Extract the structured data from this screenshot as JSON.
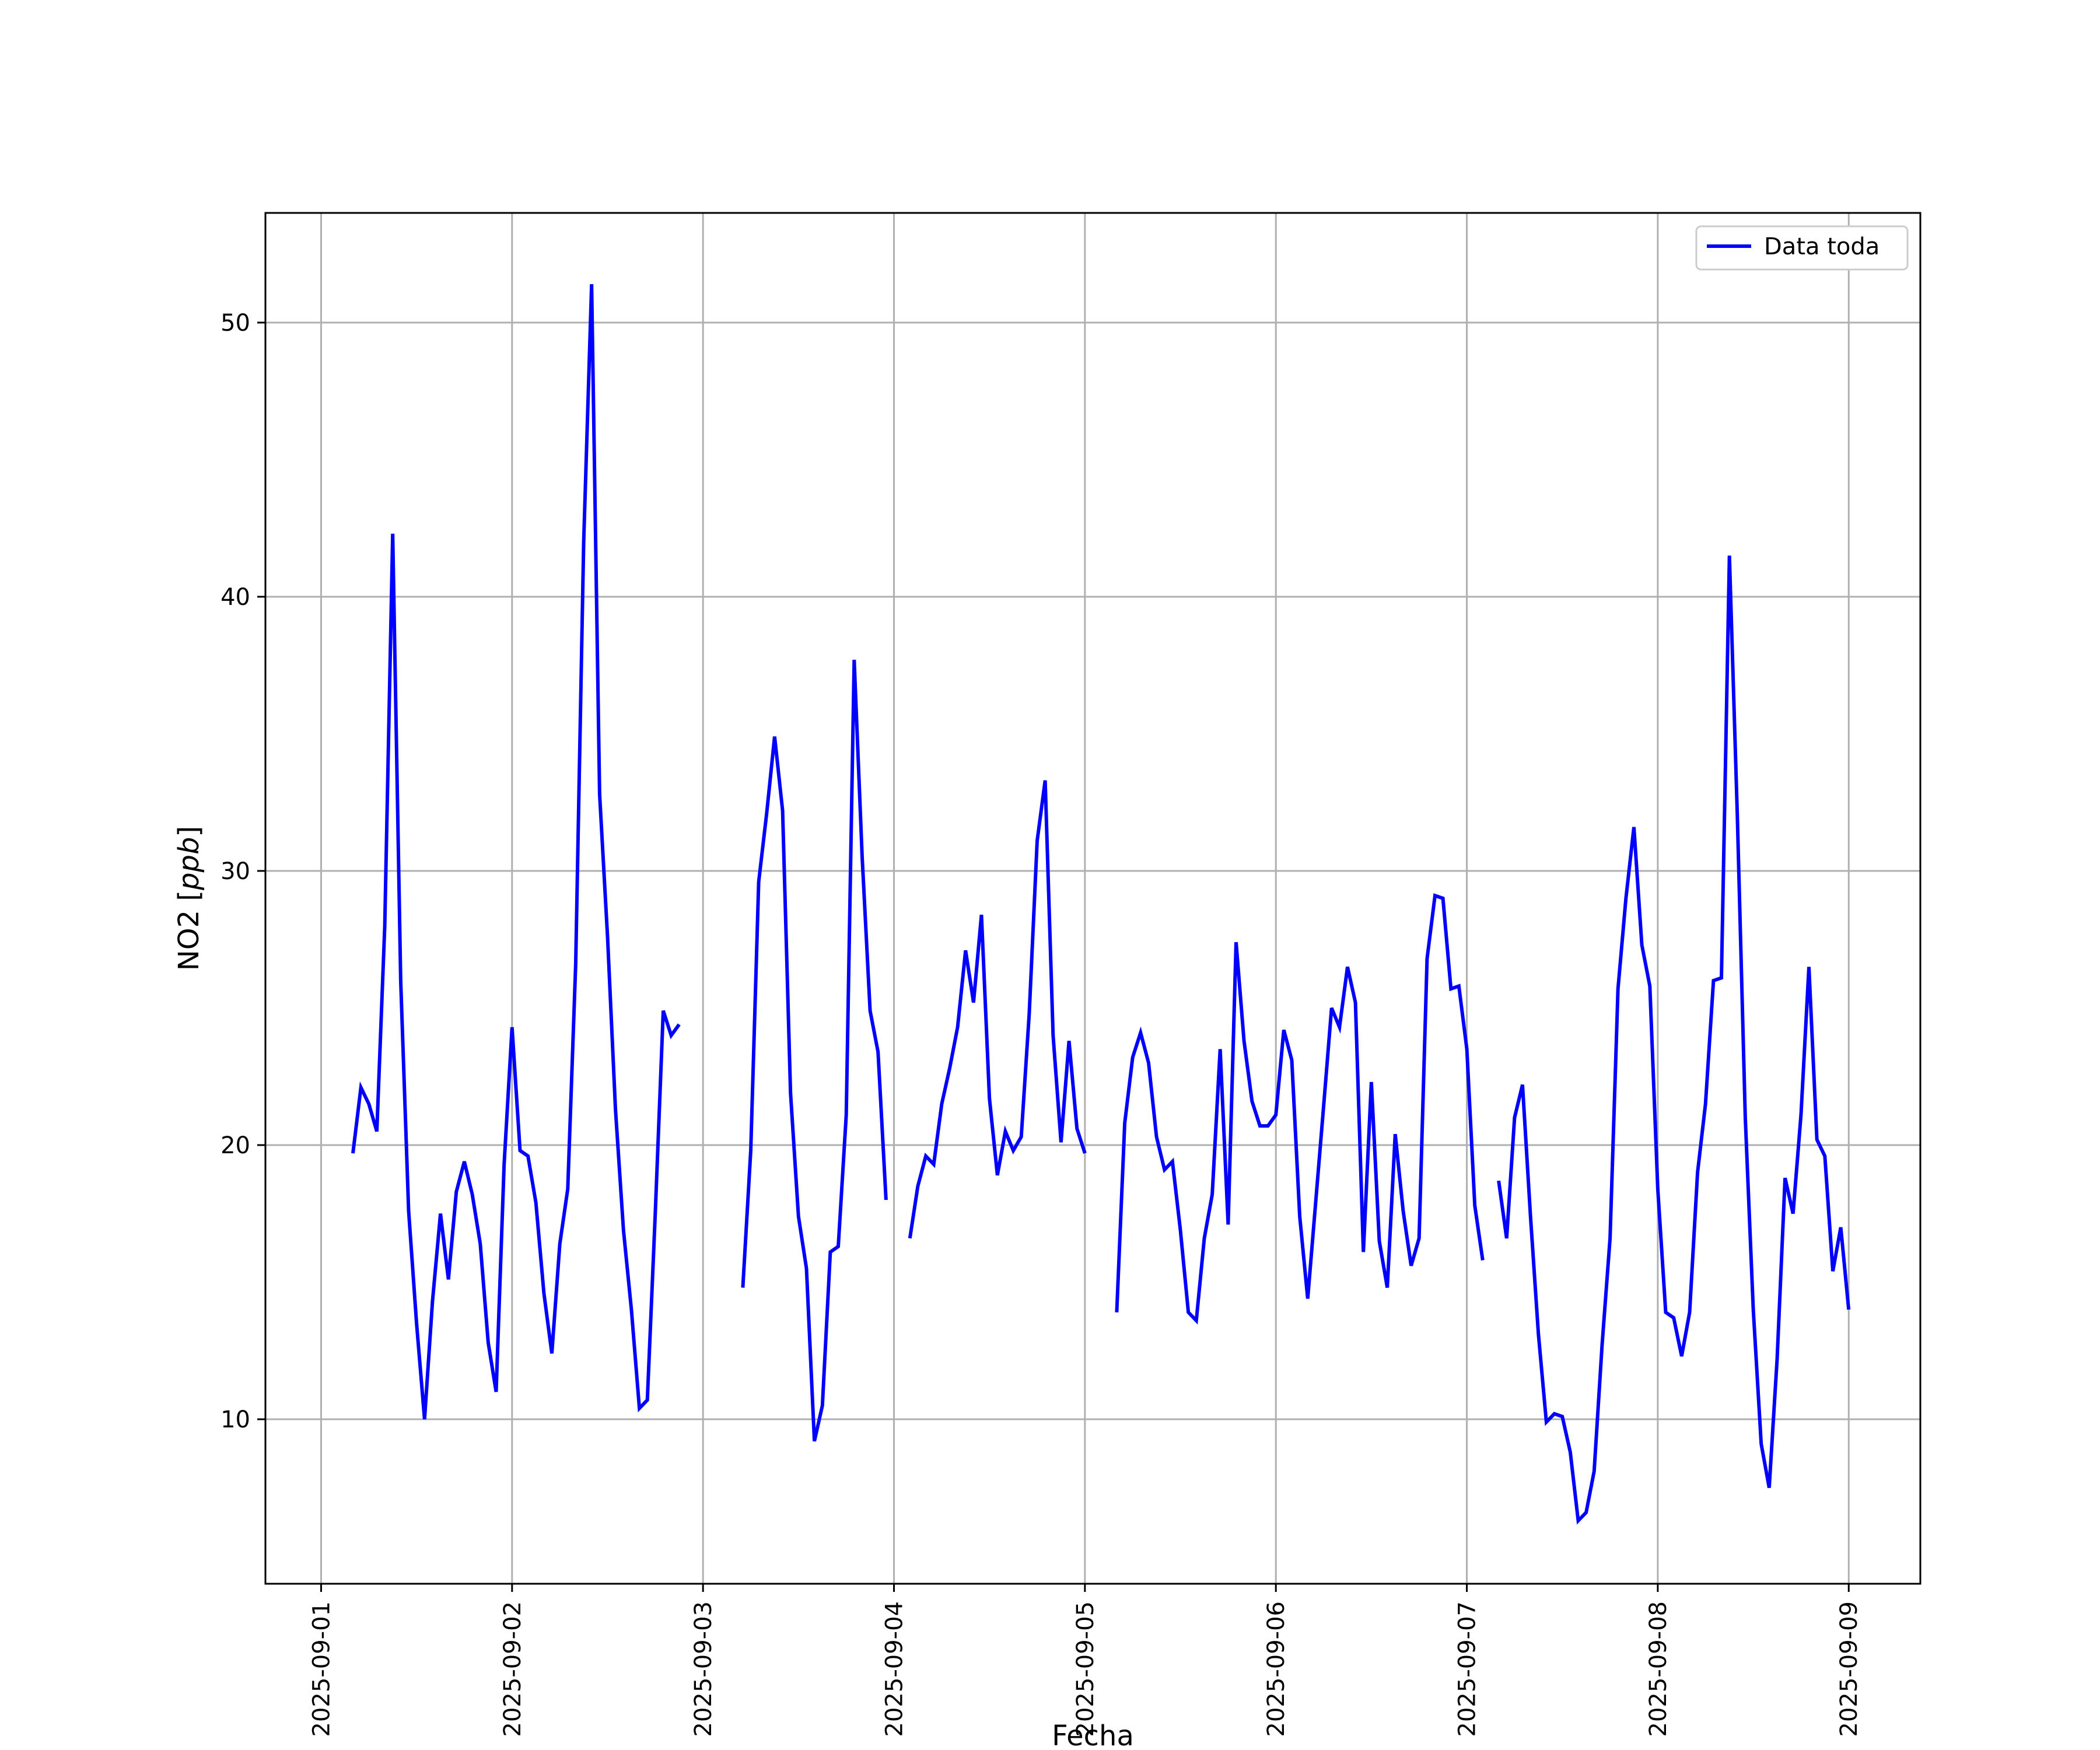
{
  "chart_data": {
    "type": "line",
    "title": "",
    "xlabel": "Fecha",
    "ylabel": "NO2 [ppb]",
    "ylabel_plain": "NO2 [",
    "ylabel_unit": "ppb",
    "ylabel_close": "]",
    "grid": true,
    "legend_position": "top-right",
    "xlim": [
      "2025-08-31T17:00",
      "2025-09-09T09:00"
    ],
    "ylim": [
      4.0,
      54.0
    ],
    "x_ticks": [
      "2025-09-01",
      "2025-09-02",
      "2025-09-03",
      "2025-09-04",
      "2025-09-05",
      "2025-09-06",
      "2025-09-07",
      "2025-09-08",
      "2025-09-09"
    ],
    "y_ticks": [
      10,
      20,
      30,
      40,
      50
    ],
    "series": [
      {
        "name": "Data toda",
        "color": "#0000ff",
        "points": [
          [
            "2025-09-01T04:00",
            19.7
          ],
          [
            "2025-09-01T05:00",
            22.1
          ],
          [
            "2025-09-01T06:00",
            21.5
          ],
          [
            "2025-09-01T07:00",
            20.5
          ],
          [
            "2025-09-01T08:00",
            28.0
          ],
          [
            "2025-09-01T09:00",
            42.3
          ],
          [
            "2025-09-01T10:00",
            26.0
          ],
          [
            "2025-09-01T11:00",
            17.6
          ],
          [
            "2025-09-01T12:00",
            13.5
          ],
          [
            "2025-09-01T13:00",
            10.0
          ],
          [
            "2025-09-01T14:00",
            14.3
          ],
          [
            "2025-09-01T15:00",
            17.5
          ],
          [
            "2025-09-01T16:00",
            15.1
          ],
          [
            "2025-09-01T17:00",
            18.3
          ],
          [
            "2025-09-01T18:00",
            19.4
          ],
          [
            "2025-09-01T19:00",
            18.2
          ],
          [
            "2025-09-01T20:00",
            16.4
          ],
          [
            "2025-09-01T21:00",
            12.8
          ],
          [
            "2025-09-01T22:00",
            11.0
          ],
          [
            "2025-09-01T23:00",
            19.3
          ],
          [
            "2025-09-02T00:00",
            24.3
          ],
          [
            "2025-09-02T01:00",
            19.8
          ],
          [
            "2025-09-02T02:00",
            19.6
          ],
          [
            "2025-09-02T03:00",
            17.9
          ],
          [
            "2025-09-02T04:00",
            14.6
          ],
          [
            "2025-09-02T05:00",
            12.4
          ],
          [
            "2025-09-02T06:00",
            16.4
          ],
          [
            "2025-09-02T07:00",
            18.4
          ],
          [
            "2025-09-02T08:00",
            26.6
          ],
          [
            "2025-09-02T09:00",
            42.0
          ],
          [
            "2025-09-02T10:00",
            51.4
          ],
          [
            "2025-09-02T11:00",
            32.8
          ],
          [
            "2025-09-02T12:00",
            27.6
          ],
          [
            "2025-09-02T13:00",
            21.3
          ],
          [
            "2025-09-02T14:00",
            16.9
          ],
          [
            "2025-09-02T15:00",
            14.0
          ],
          [
            "2025-09-02T16:00",
            10.4
          ],
          [
            "2025-09-02T17:00",
            10.7
          ],
          [
            "2025-09-02T18:00",
            17.5
          ],
          [
            "2025-09-02T19:00",
            24.9
          ],
          [
            "2025-09-02T20:00",
            24.0
          ],
          [
            "2025-09-02T21:00",
            24.4
          ],
          [
            "2025-09-02T22:00",
            null
          ],
          [
            "2025-09-03T05:00",
            14.8
          ],
          [
            "2025-09-03T06:00",
            19.8
          ],
          [
            "2025-09-03T07:00",
            29.6
          ],
          [
            "2025-09-03T08:00",
            32.1
          ],
          [
            "2025-09-03T09:00",
            34.9
          ],
          [
            "2025-09-03T10:00",
            32.2
          ],
          [
            "2025-09-03T11:00",
            21.9
          ],
          [
            "2025-09-03T12:00",
            17.4
          ],
          [
            "2025-09-03T13:00",
            15.5
          ],
          [
            "2025-09-03T14:00",
            9.2
          ],
          [
            "2025-09-03T15:00",
            10.5
          ],
          [
            "2025-09-03T16:00",
            16.1
          ],
          [
            "2025-09-03T17:00",
            16.3
          ],
          [
            "2025-09-03T18:00",
            21.1
          ],
          [
            "2025-09-03T19:00",
            37.7
          ],
          [
            "2025-09-03T20:00",
            30.5
          ],
          [
            "2025-09-03T21:00",
            24.9
          ],
          [
            "2025-09-03T22:00",
            23.4
          ],
          [
            "2025-09-03T23:00",
            18.0
          ],
          [
            "2025-09-04T00:00",
            null
          ],
          [
            "2025-09-04T02:00",
            16.6
          ],
          [
            "2025-09-04T03:00",
            18.5
          ],
          [
            "2025-09-04T04:00",
            19.6
          ],
          [
            "2025-09-04T05:00",
            19.3
          ],
          [
            "2025-09-04T06:00",
            21.5
          ],
          [
            "2025-09-04T07:00",
            22.8
          ],
          [
            "2025-09-04T08:00",
            24.3
          ],
          [
            "2025-09-04T09:00",
            27.1
          ],
          [
            "2025-09-04T10:00",
            25.2
          ],
          [
            "2025-09-04T11:00",
            28.4
          ],
          [
            "2025-09-04T12:00",
            21.7
          ],
          [
            "2025-09-04T13:00",
            18.9
          ],
          [
            "2025-09-04T14:00",
            20.5
          ],
          [
            "2025-09-04T15:00",
            19.8
          ],
          [
            "2025-09-04T16:00",
            20.3
          ],
          [
            "2025-09-04T17:00",
            24.8
          ],
          [
            "2025-09-04T18:00",
            31.1
          ],
          [
            "2025-09-04T19:00",
            33.3
          ],
          [
            "2025-09-04T20:00",
            24.0
          ],
          [
            "2025-09-04T21:00",
            20.1
          ],
          [
            "2025-09-04T22:00",
            23.8
          ],
          [
            "2025-09-04T23:00",
            20.6
          ],
          [
            "2025-09-05T00:00",
            19.7
          ],
          [
            "2025-09-05T01:00",
            null
          ],
          [
            "2025-09-05T04:00",
            13.9
          ],
          [
            "2025-09-05T05:00",
            20.8
          ],
          [
            "2025-09-05T06:00",
            23.2
          ],
          [
            "2025-09-05T07:00",
            24.1
          ],
          [
            "2025-09-05T08:00",
            23.0
          ],
          [
            "2025-09-05T09:00",
            20.3
          ],
          [
            "2025-09-05T10:00",
            19.1
          ],
          [
            "2025-09-05T11:00",
            19.4
          ],
          [
            "2025-09-05T12:00",
            16.9
          ],
          [
            "2025-09-05T13:00",
            13.9
          ],
          [
            "2025-09-05T14:00",
            13.6
          ],
          [
            "2025-09-05T15:00",
            16.6
          ],
          [
            "2025-09-05T16:00",
            18.2
          ],
          [
            "2025-09-05T17:00",
            23.5
          ],
          [
            "2025-09-05T18:00",
            17.1
          ],
          [
            "2025-09-05T19:00",
            27.4
          ],
          [
            "2025-09-05T20:00",
            23.8
          ],
          [
            "2025-09-05T21:00",
            21.6
          ],
          [
            "2025-09-05T22:00",
            20.7
          ],
          [
            "2025-09-05T23:00",
            20.7
          ],
          [
            "2025-09-06T00:00",
            21.1
          ],
          [
            "2025-09-06T01:00",
            24.2
          ],
          [
            "2025-09-06T02:00",
            23.1
          ],
          [
            "2025-09-06T03:00",
            17.4
          ],
          [
            "2025-09-06T04:00",
            14.4
          ],
          [
            "2025-09-06T05:00",
            17.9
          ],
          [
            "2025-09-06T06:00",
            21.4
          ],
          [
            "2025-09-06T07:00",
            25.0
          ],
          [
            "2025-09-06T08:00",
            24.3
          ],
          [
            "2025-09-06T09:00",
            26.5
          ],
          [
            "2025-09-06T10:00",
            25.2
          ],
          [
            "2025-09-06T11:00",
            16.1
          ],
          [
            "2025-09-06T12:00",
            22.3
          ],
          [
            "2025-09-06T13:00",
            16.5
          ],
          [
            "2025-09-06T14:00",
            14.8
          ],
          [
            "2025-09-06T15:00",
            20.4
          ],
          [
            "2025-09-06T16:00",
            17.6
          ],
          [
            "2025-09-06T17:00",
            15.6
          ],
          [
            "2025-09-06T18:00",
            16.6
          ],
          [
            "2025-09-06T19:00",
            26.8
          ],
          [
            "2025-09-06T20:00",
            29.1
          ],
          [
            "2025-09-06T21:00",
            29.0
          ],
          [
            "2025-09-06T22:00",
            25.7
          ],
          [
            "2025-09-06T23:00",
            25.8
          ],
          [
            "2025-09-07T00:00",
            23.5
          ],
          [
            "2025-09-07T01:00",
            17.8
          ],
          [
            "2025-09-07T02:00",
            15.8
          ],
          [
            "2025-09-07T03:00",
            null
          ],
          [
            "2025-09-07T04:00",
            18.7
          ],
          [
            "2025-09-07T05:00",
            16.6
          ],
          [
            "2025-09-07T06:00",
            21.0
          ],
          [
            "2025-09-07T07:00",
            22.2
          ],
          [
            "2025-09-07T08:00",
            17.4
          ],
          [
            "2025-09-07T09:00",
            13.1
          ],
          [
            "2025-09-07T10:00",
            9.9
          ],
          [
            "2025-09-07T11:00",
            10.2
          ],
          [
            "2025-09-07T12:00",
            10.1
          ],
          [
            "2025-09-07T13:00",
            8.8
          ],
          [
            "2025-09-07T14:00",
            6.3
          ],
          [
            "2025-09-07T15:00",
            6.6
          ],
          [
            "2025-09-07T16:00",
            8.1
          ],
          [
            "2025-09-07T17:00",
            12.7
          ],
          [
            "2025-09-07T18:00",
            16.6
          ],
          [
            "2025-09-07T19:00",
            25.7
          ],
          [
            "2025-09-07T20:00",
            29.0
          ],
          [
            "2025-09-07T21:00",
            31.6
          ],
          [
            "2025-09-07T22:00",
            27.3
          ],
          [
            "2025-09-07T23:00",
            25.8
          ],
          [
            "2025-09-08T00:00",
            18.4
          ],
          [
            "2025-09-08T01:00",
            13.9
          ],
          [
            "2025-09-08T02:00",
            13.7
          ],
          [
            "2025-09-08T03:00",
            12.3
          ],
          [
            "2025-09-08T04:00",
            13.9
          ],
          [
            "2025-09-08T05:00",
            19.0
          ],
          [
            "2025-09-08T06:00",
            21.5
          ],
          [
            "2025-09-08T07:00",
            26.0
          ],
          [
            "2025-09-08T08:00",
            26.1
          ],
          [
            "2025-09-08T09:00",
            41.5
          ],
          [
            "2025-09-08T10:00",
            32.0
          ],
          [
            "2025-09-08T11:00",
            21.0
          ],
          [
            "2025-09-08T12:00",
            14.0
          ],
          [
            "2025-09-08T13:00",
            9.1
          ],
          [
            "2025-09-08T14:00",
            7.5
          ],
          [
            "2025-09-08T15:00",
            12.2
          ],
          [
            "2025-09-08T16:00",
            18.8
          ],
          [
            "2025-09-08T17:00",
            17.5
          ],
          [
            "2025-09-08T18:00",
            21.1
          ],
          [
            "2025-09-08T19:00",
            26.5
          ],
          [
            "2025-09-08T20:00",
            20.2
          ],
          [
            "2025-09-08T21:00",
            19.6
          ],
          [
            "2025-09-08T22:00",
            15.4
          ],
          [
            "2025-09-08T23:00",
            17.0
          ],
          [
            "2025-09-09T00:00",
            14.0
          ]
        ]
      }
    ]
  }
}
